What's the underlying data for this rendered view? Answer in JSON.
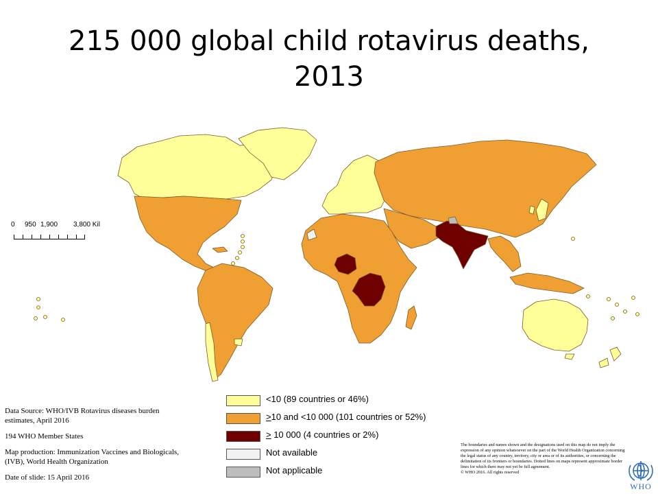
{
  "title": {
    "line1": "215 000 global child rotavirus deaths,",
    "line2": "2013"
  },
  "colors": {
    "low": "#ffff99",
    "mid": "#f0a032",
    "high": "#6e0000",
    "not_available": "#f2f2f2",
    "not_applicable": "#bdbdbd",
    "border": "#7a5a2a",
    "who_blue": "#2d6db5"
  },
  "scale_bar": {
    "labels": [
      "0",
      "950",
      "1,900",
      "3,800 Kil"
    ]
  },
  "legend": {
    "items": [
      {
        "key": "low",
        "label": "<10 (89 countries or 46%)"
      },
      {
        "key": "mid",
        "label_prefix": ">",
        "label": "10 and <10 000 (101 countries or 52%)"
      },
      {
        "key": "high",
        "label_prefix": ">",
        "label": " 10 000 (4 countries or 2%)"
      },
      {
        "key": "not_available",
        "label": "Not available"
      },
      {
        "key": "not_applicable",
        "label": "Not applicable"
      }
    ]
  },
  "source": {
    "data_source": "Data Source: WHO/IVB Rotavirus diseases burden estimates, April 2016",
    "member_states": "194 WHO Member States",
    "map_production": "Map production: Immunization Vaccines and Biologicals, (IVB), World Health Organization",
    "date": "Date of slide: 15 April 2016"
  },
  "disclaimer": {
    "text": "The boundaries and names shown and the designations used on this map do not imply the expression of any opinion whatsoever on the part of the World Health Organization concerning the legal status of any country, territory, city or area or of its authorities, or concerning the delimitation of its frontiers or boundaries. Dotted lines on maps represent approximate border lines for which there may not yet be full agreement.",
    "copyright": "© WHO 2016. All rights reserved"
  },
  "logo": {
    "text": "WHO",
    "icon": "who-emblem-icon"
  },
  "regions": [
    {
      "id": "canada-alaska",
      "category": "low"
    },
    {
      "id": "greenland",
      "category": "low"
    },
    {
      "id": "usa-mexico-central-america",
      "category": "mid"
    },
    {
      "id": "south-america",
      "category": "mid"
    },
    {
      "id": "chile-uruguay",
      "category": "low"
    },
    {
      "id": "europe",
      "category": "low"
    },
    {
      "id": "russia-asia",
      "category": "mid"
    },
    {
      "id": "japan-korea",
      "category": "low"
    },
    {
      "id": "africa",
      "category": "mid"
    },
    {
      "id": "nigeria",
      "category": "high"
    },
    {
      "id": "dr-congo",
      "category": "high"
    },
    {
      "id": "india-pakistan",
      "category": "high"
    },
    {
      "id": "southeast-asia",
      "category": "mid"
    },
    {
      "id": "australia",
      "category": "low"
    },
    {
      "id": "new-zealand",
      "category": "low"
    },
    {
      "id": "madagascar",
      "category": "mid"
    },
    {
      "id": "kashmir",
      "category": "not_applicable"
    },
    {
      "id": "western-sahara",
      "category": "not_available"
    }
  ]
}
